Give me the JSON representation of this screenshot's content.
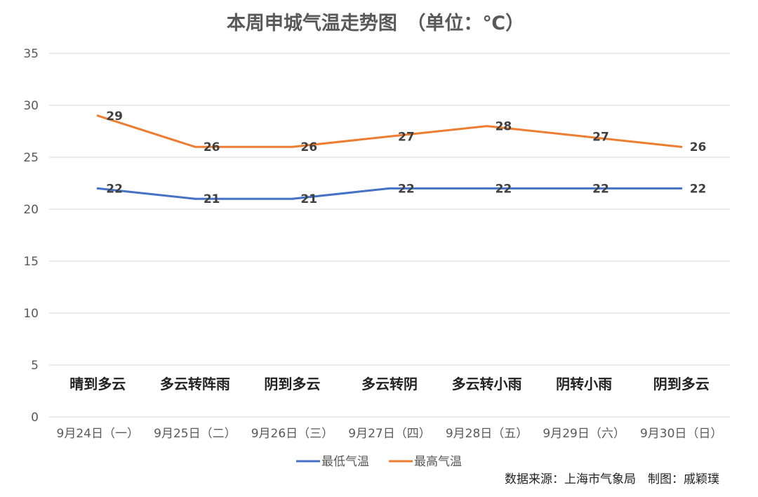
{
  "chart_data": {
    "type": "line",
    "title": "本周申城气温走势图　（单位：℃）",
    "categories": [
      "9月24日（一）",
      "9月25日（二）",
      "9月26日（三）",
      "9月27日（四）",
      "9月28日（五）",
      "9月29日（六）",
      "9月30日（日）"
    ],
    "weather": [
      "晴到多云",
      "多云转阵雨",
      "阴到多云",
      "多云转阴",
      "多云转小雨",
      "阴转小雨",
      "阴到多云"
    ],
    "series": [
      {
        "name": "最低气温",
        "values": [
          22,
          21,
          21,
          22,
          22,
          22,
          22
        ],
        "color": "#4472c4"
      },
      {
        "name": "最高气温",
        "values": [
          29,
          26,
          26,
          27,
          28,
          27,
          26
        ],
        "color": "#ed7d31"
      }
    ],
    "yticks": [
      0,
      5,
      10,
      15,
      20,
      25,
      30,
      35
    ],
    "ylim": [
      0,
      35
    ],
    "grid": true,
    "legend_position": "bottom"
  },
  "source_note": "数据来源：上海市气象局　制图：戚颖璞"
}
